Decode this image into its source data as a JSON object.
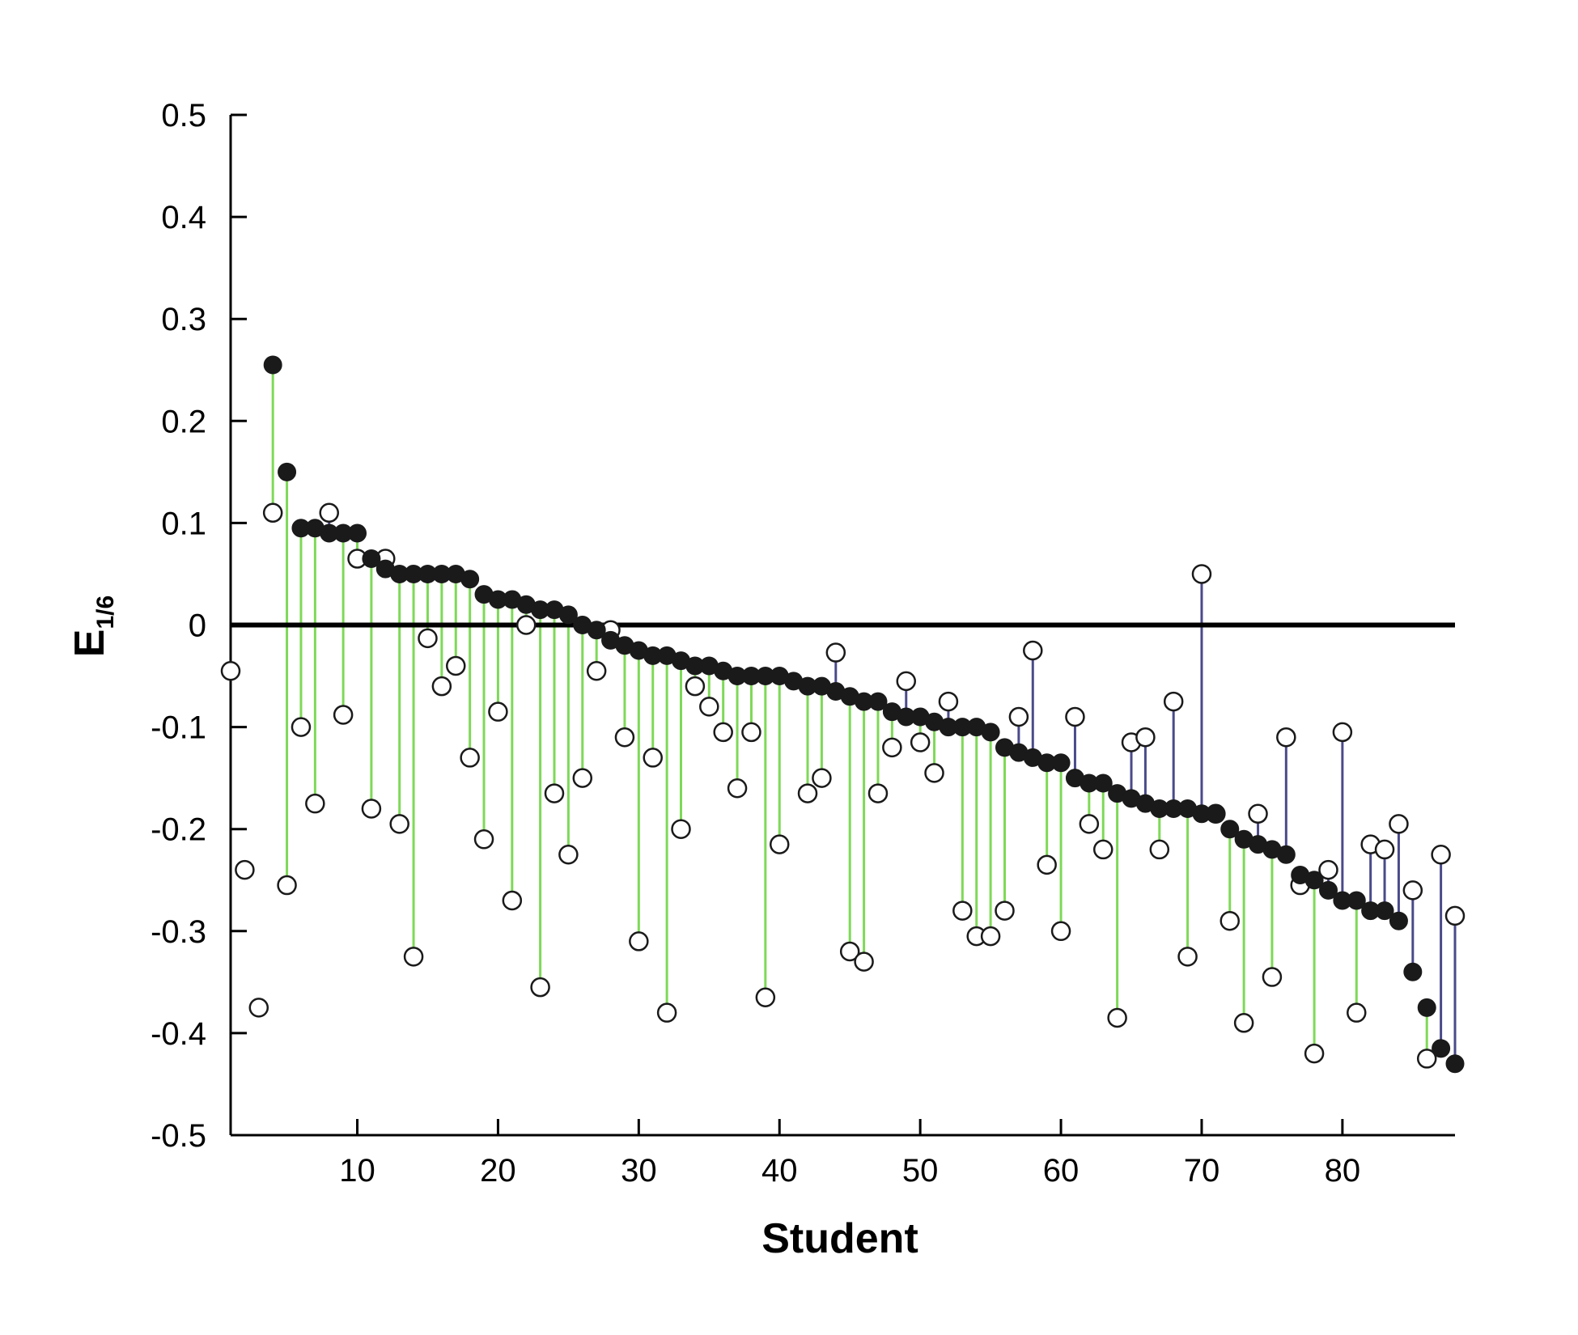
{
  "chart_data": {
    "type": "scatter",
    "title": "",
    "xlabel": "Student",
    "ylabel_main": "E",
    "ylabel_sub": "1/6",
    "xlim": [
      1,
      88
    ],
    "ylim": [
      -0.5,
      0.5
    ],
    "x_ticks": [
      10,
      20,
      30,
      40,
      50,
      60,
      70,
      80
    ],
    "y_ticks": [
      {
        "value": 0.5,
        "label": "0.5"
      },
      {
        "value": 0.4,
        "label": "0.4"
      },
      {
        "value": 0.3,
        "label": "0.3"
      },
      {
        "value": 0.2,
        "label": "0.2"
      },
      {
        "value": 0.1,
        "label": "0.1"
      },
      {
        "value": 0.0,
        "label": "0"
      },
      {
        "value": -0.1,
        "label": "-0.1"
      },
      {
        "value": -0.2,
        "label": "-0.2"
      },
      {
        "value": -0.3,
        "label": "-0.3"
      },
      {
        "value": -0.4,
        "label": "-0.4"
      },
      {
        "value": -0.5,
        "label": "-0.5"
      }
    ],
    "zero_line": true,
    "grid": false,
    "colors": {
      "filled": "#1a1a1a",
      "open_fill": "#ffffff",
      "stem_up": "#7ed957",
      "stem_down": "#4a4a8a",
      "axis": "#000000"
    },
    "series": [
      {
        "marker": "filled",
        "values": [
          null,
          null,
          null,
          0.255,
          0.15,
          0.095,
          0.095,
          0.09,
          0.09,
          0.09,
          0.065,
          0.055,
          0.05,
          0.05,
          0.05,
          0.05,
          0.05,
          0.045,
          0.03,
          0.025,
          0.025,
          0.02,
          0.015,
          0.015,
          0.01,
          0.0,
          -0.005,
          -0.015,
          -0.02,
          -0.025,
          -0.03,
          -0.03,
          -0.035,
          -0.04,
          -0.04,
          -0.045,
          -0.05,
          -0.05,
          -0.05,
          -0.05,
          -0.055,
          -0.06,
          -0.06,
          -0.065,
          -0.07,
          -0.075,
          -0.075,
          -0.085,
          -0.09,
          -0.09,
          -0.095,
          -0.1,
          -0.1,
          -0.1,
          -0.105,
          -0.12,
          -0.125,
          -0.13,
          -0.135,
          -0.135,
          -0.15,
          -0.155,
          -0.155,
          -0.165,
          -0.17,
          -0.175,
          -0.18,
          -0.18,
          -0.18,
          -0.185,
          -0.185,
          -0.2,
          -0.21,
          -0.215,
          -0.22,
          -0.225,
          -0.245,
          -0.25,
          -0.26,
          -0.27,
          -0.27,
          -0.28,
          -0.28,
          -0.29,
          -0.34,
          -0.375,
          -0.415,
          -0.43
        ]
      },
      {
        "marker": "open",
        "values": [
          -0.045,
          -0.24,
          -0.375,
          0.11,
          -0.255,
          -0.1,
          -0.175,
          0.11,
          -0.088,
          0.065,
          -0.18,
          0.065,
          -0.195,
          -0.325,
          -0.013,
          -0.06,
          -0.04,
          -0.13,
          -0.21,
          -0.085,
          -0.27,
          0.0,
          -0.355,
          -0.165,
          -0.225,
          -0.15,
          -0.045,
          -0.005,
          -0.11,
          -0.31,
          -0.13,
          -0.38,
          -0.2,
          -0.06,
          -0.08,
          -0.105,
          -0.16,
          -0.105,
          -0.365,
          -0.215,
          null,
          -0.165,
          -0.15,
          -0.027,
          -0.32,
          -0.33,
          -0.165,
          -0.12,
          -0.055,
          -0.115,
          -0.145,
          -0.075,
          -0.28,
          -0.305,
          -0.305,
          -0.28,
          -0.09,
          -0.025,
          -0.235,
          -0.3,
          -0.09,
          -0.195,
          -0.22,
          -0.385,
          -0.115,
          -0.11,
          -0.22,
          -0.075,
          -0.325,
          0.05,
          -0.185,
          -0.29,
          -0.39,
          -0.185,
          -0.345,
          -0.11,
          -0.255,
          -0.42,
          -0.24,
          -0.105,
          -0.38,
          -0.215,
          -0.22,
          -0.195,
          -0.26,
          -0.425,
          -0.225,
          -0.285
        ]
      }
    ]
  }
}
